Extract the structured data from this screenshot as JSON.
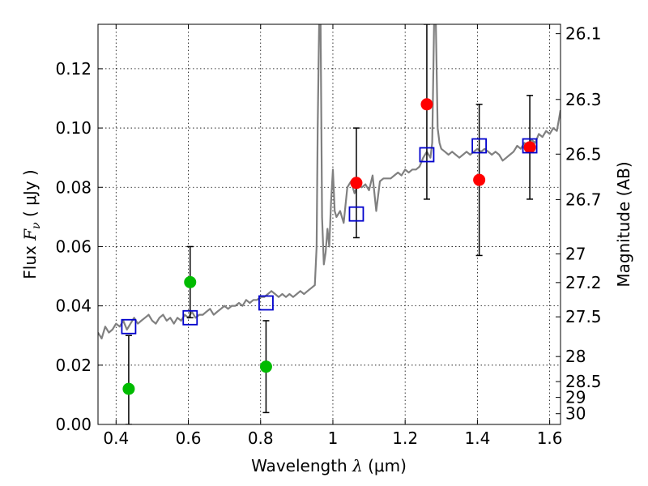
{
  "chart_data": {
    "type": "scatter",
    "xlabel_prefix": "Wavelength",
    "xlabel_symbol": "λ",
    "xlabel_unit": "(μm)",
    "ylabel_prefix": "Flux",
    "ylabel_symbol": "F",
    "ylabel_subscript": "ν",
    "ylabel_unit": "( μJy )",
    "y2label": "Magnitude (AB)",
    "xlim": [
      0.35,
      1.63
    ],
    "ylim": [
      0.0,
      0.135
    ],
    "grid": true,
    "x_ticks": [
      {
        "value": 0.4,
        "label": "0.4"
      },
      {
        "value": 0.6,
        "label": "0.6"
      },
      {
        "value": 0.8,
        "label": "0.8"
      },
      {
        "value": 1.0,
        "label": "1"
      },
      {
        "value": 1.2,
        "label": "1.2"
      },
      {
        "value": 1.4,
        "label": "1.4"
      },
      {
        "value": 1.6,
        "label": "1.6"
      }
    ],
    "y_ticks": [
      {
        "value": 0.0,
        "label": "0.00"
      },
      {
        "value": 0.02,
        "label": "0.02"
      },
      {
        "value": 0.04,
        "label": "0.04"
      },
      {
        "value": 0.06,
        "label": "0.06"
      },
      {
        "value": 0.08,
        "label": "0.08"
      },
      {
        "value": 0.1,
        "label": "0.10"
      },
      {
        "value": 0.12,
        "label": "0.12"
      }
    ],
    "mag_ticks": [
      {
        "mag": 26.1,
        "label": "26.1"
      },
      {
        "mag": 26.3,
        "label": "26.3"
      },
      {
        "mag": 26.5,
        "label": "26.5"
      },
      {
        "mag": 26.7,
        "label": "26.7"
      },
      {
        "mag": 27.0,
        "label": "27"
      },
      {
        "mag": 27.2,
        "label": "27.2"
      },
      {
        "mag": 27.5,
        "label": "27.5"
      },
      {
        "mag": 28.0,
        "label": "28"
      },
      {
        "mag": 28.5,
        "label": "28.5"
      },
      {
        "mag": 29.0,
        "label": "29"
      },
      {
        "mag": 30.0,
        "label": "30"
      }
    ],
    "colors": {
      "spectrum": "#808080",
      "model_squares": "#0000cc",
      "red_points": "#ff0000",
      "green_points": "#00bb00",
      "errorbars": "#000000",
      "grid": "#000000"
    },
    "spectrum": {
      "x": [
        0.35,
        0.36,
        0.37,
        0.38,
        0.39,
        0.4,
        0.41,
        0.42,
        0.43,
        0.44,
        0.45,
        0.46,
        0.47,
        0.48,
        0.49,
        0.5,
        0.51,
        0.52,
        0.53,
        0.54,
        0.55,
        0.56,
        0.57,
        0.58,
        0.59,
        0.6,
        0.61,
        0.62,
        0.63,
        0.64,
        0.65,
        0.66,
        0.67,
        0.68,
        0.69,
        0.7,
        0.71,
        0.72,
        0.73,
        0.74,
        0.75,
        0.76,
        0.77,
        0.78,
        0.79,
        0.8,
        0.81,
        0.82,
        0.83,
        0.84,
        0.85,
        0.86,
        0.87,
        0.88,
        0.89,
        0.9,
        0.91,
        0.92,
        0.93,
        0.94,
        0.95,
        0.955,
        0.958,
        0.962,
        0.966,
        0.97,
        0.975,
        0.98,
        0.985,
        0.99,
        0.995,
        1.0,
        1.005,
        1.01,
        1.02,
        1.03,
        1.04,
        1.05,
        1.06,
        1.07,
        1.08,
        1.09,
        1.1,
        1.11,
        1.12,
        1.13,
        1.14,
        1.15,
        1.16,
        1.17,
        1.18,
        1.19,
        1.2,
        1.21,
        1.22,
        1.23,
        1.24,
        1.25,
        1.26,
        1.27,
        1.275,
        1.28,
        1.285,
        1.29,
        1.295,
        1.3,
        1.31,
        1.32,
        1.33,
        1.34,
        1.35,
        1.36,
        1.37,
        1.38,
        1.39,
        1.4,
        1.41,
        1.42,
        1.43,
        1.44,
        1.45,
        1.46,
        1.47,
        1.48,
        1.49,
        1.5,
        1.51,
        1.52,
        1.53,
        1.54,
        1.55,
        1.56,
        1.57,
        1.58,
        1.59,
        1.6,
        1.61,
        1.62,
        1.63
      ],
      "y": [
        0.031,
        0.029,
        0.033,
        0.031,
        0.032,
        0.034,
        0.033,
        0.035,
        0.032,
        0.034,
        0.036,
        0.034,
        0.035,
        0.036,
        0.037,
        0.035,
        0.034,
        0.036,
        0.037,
        0.035,
        0.036,
        0.034,
        0.036,
        0.035,
        0.037,
        0.036,
        0.038,
        0.036,
        0.037,
        0.037,
        0.038,
        0.039,
        0.037,
        0.038,
        0.039,
        0.04,
        0.039,
        0.04,
        0.04,
        0.041,
        0.04,
        0.042,
        0.041,
        0.042,
        0.042,
        0.043,
        0.043,
        0.044,
        0.045,
        0.044,
        0.043,
        0.044,
        0.043,
        0.044,
        0.043,
        0.044,
        0.045,
        0.044,
        0.045,
        0.046,
        0.047,
        0.06,
        0.1,
        0.135,
        0.135,
        0.07,
        0.054,
        0.058,
        0.066,
        0.06,
        0.075,
        0.086,
        0.072,
        0.07,
        0.072,
        0.068,
        0.08,
        0.082,
        0.078,
        0.081,
        0.08,
        0.081,
        0.079,
        0.084,
        0.072,
        0.082,
        0.083,
        0.083,
        0.083,
        0.084,
        0.085,
        0.084,
        0.086,
        0.085,
        0.086,
        0.086,
        0.087,
        0.09,
        0.092,
        0.09,
        0.095,
        0.135,
        0.135,
        0.1,
        0.095,
        0.093,
        0.092,
        0.091,
        0.092,
        0.091,
        0.09,
        0.091,
        0.092,
        0.091,
        0.092,
        0.093,
        0.092,
        0.093,
        0.092,
        0.091,
        0.092,
        0.091,
        0.089,
        0.09,
        0.091,
        0.092,
        0.094,
        0.093,
        0.095,
        0.094,
        0.096,
        0.095,
        0.098,
        0.097,
        0.099,
        0.098,
        0.1,
        0.099,
        0.106
      ]
    },
    "model_squares": {
      "x": [
        0.435,
        0.605,
        0.815,
        1.065,
        1.26,
        1.405,
        1.545
      ],
      "y": [
        0.033,
        0.036,
        0.041,
        0.071,
        0.091,
        0.094,
        0.094
      ]
    },
    "red_points": {
      "x": [
        1.065,
        1.26,
        1.405,
        1.545
      ],
      "y": [
        0.0815,
        0.108,
        0.0825,
        0.0935
      ],
      "yerr_low": [
        0.063,
        0.076,
        0.057,
        0.076
      ],
      "yerr_high": [
        0.1,
        0.135,
        0.108,
        0.111
      ]
    },
    "green_points": {
      "x": [
        0.435,
        0.605,
        0.815
      ],
      "y": [
        0.012,
        0.048,
        0.0195
      ],
      "yerr_low": [
        0.0,
        0.036,
        0.004
      ],
      "yerr_high": [
        0.03,
        0.06,
        0.035
      ]
    }
  }
}
